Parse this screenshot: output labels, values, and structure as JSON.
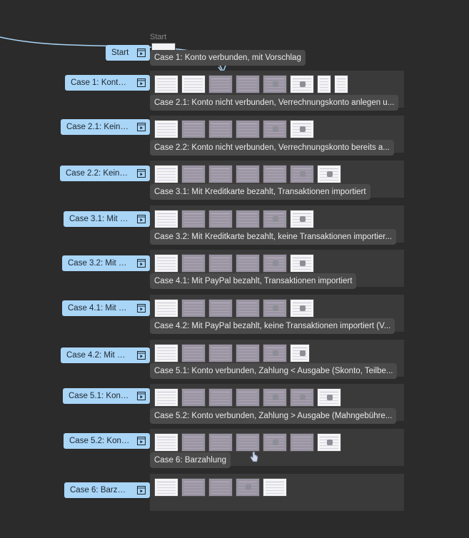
{
  "start": {
    "caption": "Start",
    "label": "Start"
  },
  "flows": [
    {
      "label": "Case 1: Konto v...",
      "caption": "Case 1: Konto verbunden, mit Vorschlag"
    },
    {
      "label": "Case 2.1: Kein K...",
      "caption": "Case 2.1: Konto nicht verbunden, Verrechnungskonto anlegen u..."
    },
    {
      "label": "Case 2.2: Kein K...",
      "caption": "Case 2.2: Konto nicht verbunden, Verrechnungskonto bereits a..."
    },
    {
      "label": "Case 3.1: Mit Kr...",
      "caption": "Case 3.1: Mit Kreditkarte bezahlt, Transaktionen importiert"
    },
    {
      "label": "Case 3.2: Mit Kr...",
      "caption": "Case 3.2: Mit Kreditkarte bezahlt, keine Transaktionen importier..."
    },
    {
      "label": "Case 4.1: Mit Pa...",
      "caption": "Case 4.1: Mit PayPal bezahlt, Transaktionen importiert"
    },
    {
      "label": "Case 4.2: Mit Pa...",
      "caption": "Case 4.2: Mit PayPal bezahlt, keine Transaktionen importiert (V..."
    },
    {
      "label": "Case 5.1: Konto ...",
      "caption": "Case 5.1: Konto verbunden, Zahlung < Ausgabe (Skonto, Teilbe..."
    },
    {
      "label": "Case 5.2: Konto...",
      "caption": "Case 5.2: Konto verbunden, Zahlung > Ausgabe (Mahngebühre..."
    },
    {
      "label": "Case 6: Barzahl...",
      "caption": "Case 6: Barzahlung"
    }
  ],
  "icons": {
    "flow": "play-frame-icon",
    "cursor": "hand-cursor-icon"
  },
  "colors": {
    "label_bg": "#a9d5f7",
    "connector": "#a9d5f7",
    "canvas": "#2b2b2b"
  }
}
